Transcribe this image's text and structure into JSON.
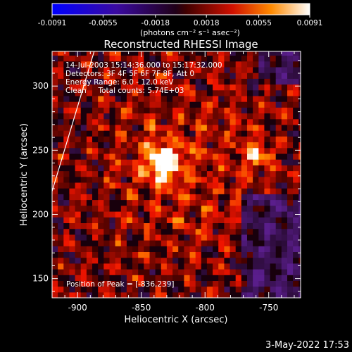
{
  "chart_data": {
    "type": "heatmap",
    "title": "Reconstructed RHESSI Image",
    "xlabel": "Heliocentric X (arcsec)",
    "ylabel": "Heliocentric Y (arcsec)",
    "xlim": [
      -920,
      -725
    ],
    "ylim": [
      135,
      327
    ],
    "xticks": [
      -900,
      -850,
      -800,
      -750
    ],
    "yticks": [
      150,
      200,
      250,
      300
    ],
    "colorbar": {
      "ticks": [
        "-0.0091",
        "-0.0055",
        "-0.0018",
        "0.0018",
        "0.0055",
        "0.0091"
      ],
      "range": [
        -0.0091,
        0.0091
      ],
      "units": "(photons cm⁻² s⁻¹ asec⁻²)"
    },
    "info_lines": [
      "14-Jul-2003 15:14:36.000 to 15:17:32.000",
      "Detectors: 3F 4F 5F 6F 7F 8F, Att 0",
      "Energy Range: 6.0 - 12.0 keV",
      "Clean     Total counts: 5.74E+03"
    ],
    "peak_label": "Position of Peak = [-836,239]",
    "peak": {
      "x": -836,
      "y": 239,
      "value": 0.0091
    },
    "secondary_source": {
      "x": -761,
      "y": 245,
      "value": 0.0062
    },
    "limb_line": {
      "x1": -920,
      "y1": 218,
      "x2": -887,
      "y2": 327
    }
  },
  "footer": {
    "timestamp": "3-May-2022 17:53"
  }
}
